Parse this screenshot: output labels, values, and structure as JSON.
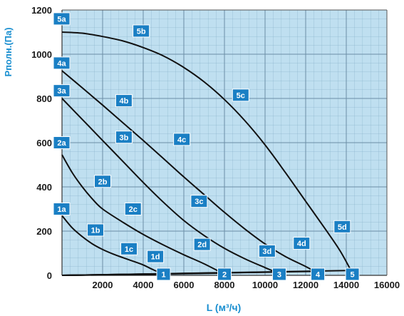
{
  "chart_data": {
    "type": "line",
    "xlabel": "L (м³/ч)",
    "ylabel": "Pполн.(Па)",
    "xlim": [
      0,
      16000
    ],
    "ylim": [
      0,
      1200
    ],
    "x_ticks": [
      "2000",
      "4000",
      "6000",
      "8000",
      "10000",
      "12000",
      "14000",
      "16000"
    ],
    "y_ticks": [
      "0",
      "200",
      "400",
      "600",
      "800",
      "1000",
      "1200"
    ],
    "grid": {
      "major_x": 2000,
      "major_y": 200,
      "minor_x": 400,
      "minor_y": 40
    },
    "colors": {
      "background": "#bfdff0",
      "grid": "#7ea9c3",
      "curve": "#111111",
      "badge": "#1a7fc4",
      "axis_title": "#1a8fd0"
    },
    "series": [
      {
        "points": [
          [
            0,
            270
          ],
          [
            500,
            215
          ],
          [
            1000,
            175
          ],
          [
            1500,
            142
          ],
          [
            2000,
            117
          ],
          [
            2500,
            97
          ],
          [
            3000,
            80
          ],
          [
            3500,
            64
          ],
          [
            4000,
            47
          ],
          [
            4500,
            25
          ],
          [
            5000,
            5
          ]
        ]
      },
      {
        "points": [
          [
            0,
            545
          ],
          [
            500,
            465
          ],
          [
            1000,
            400
          ],
          [
            1500,
            345
          ],
          [
            2000,
            300
          ],
          [
            3000,
            240
          ],
          [
            4000,
            185
          ],
          [
            5000,
            137
          ],
          [
            6000,
            93
          ],
          [
            7000,
            52
          ],
          [
            8000,
            5
          ]
        ]
      },
      {
        "points": [
          [
            0,
            800
          ],
          [
            1000,
            705
          ],
          [
            2000,
            610
          ],
          [
            3000,
            515
          ],
          [
            4000,
            420
          ],
          [
            5000,
            330
          ],
          [
            6000,
            248
          ],
          [
            7000,
            180
          ],
          [
            8000,
            122
          ],
          [
            9000,
            75
          ],
          [
            10000,
            35
          ],
          [
            10700,
            8
          ]
        ]
      },
      {
        "points": [
          [
            0,
            925
          ],
          [
            1000,
            848
          ],
          [
            2000,
            770
          ],
          [
            3000,
            690
          ],
          [
            4000,
            610
          ],
          [
            5000,
            528
          ],
          [
            6000,
            445
          ],
          [
            7000,
            365
          ],
          [
            8000,
            285
          ],
          [
            9000,
            210
          ],
          [
            10000,
            142
          ],
          [
            11000,
            85
          ],
          [
            12000,
            40
          ],
          [
            12600,
            10
          ]
        ]
      },
      {
        "points": [
          [
            0,
            1100
          ],
          [
            1000,
            1095
          ],
          [
            2000,
            1080
          ],
          [
            3000,
            1060
          ],
          [
            4000,
            1030
          ],
          [
            5000,
            992
          ],
          [
            6000,
            940
          ],
          [
            7000,
            875
          ],
          [
            8000,
            795
          ],
          [
            9000,
            700
          ],
          [
            10000,
            590
          ],
          [
            11000,
            465
          ],
          [
            12000,
            335
          ],
          [
            13000,
            205
          ],
          [
            13700,
            110
          ],
          [
            14300,
            10
          ]
        ]
      }
    ],
    "bottom_lines": [
      [
        [
          0,
          0
        ],
        [
          5000,
          5
        ]
      ],
      [
        [
          0,
          0
        ],
        [
          8000,
          10
        ]
      ],
      [
        [
          0,
          0
        ],
        [
          10700,
          15
        ]
      ],
      [
        [
          0,
          0
        ],
        [
          12600,
          18
        ]
      ],
      [
        [
          0,
          0
        ],
        [
          14300,
          22
        ]
      ]
    ],
    "labels": [
      {
        "text": "1a",
        "x": 0,
        "y": 300
      },
      {
        "text": "1b",
        "x": 1650,
        "y": 205
      },
      {
        "text": "1c",
        "x": 3300,
        "y": 120
      },
      {
        "text": "1d",
        "x": 4600,
        "y": 85
      },
      {
        "text": "1",
        "x": 5000,
        "y": 5
      },
      {
        "text": "2a",
        "x": 0,
        "y": 600
      },
      {
        "text": "2b",
        "x": 2000,
        "y": 425
      },
      {
        "text": "2c",
        "x": 3500,
        "y": 300
      },
      {
        "text": "2d",
        "x": 6900,
        "y": 140
      },
      {
        "text": "2",
        "x": 8000,
        "y": 5
      },
      {
        "text": "3a",
        "x": 0,
        "y": 835
      },
      {
        "text": "3b",
        "x": 3050,
        "y": 625
      },
      {
        "text": "3c",
        "x": 6750,
        "y": 335
      },
      {
        "text": "3d",
        "x": 10100,
        "y": 110
      },
      {
        "text": "3",
        "x": 10700,
        "y": 5
      },
      {
        "text": "4a",
        "x": 0,
        "y": 960
      },
      {
        "text": "4b",
        "x": 3050,
        "y": 790
      },
      {
        "text": "4c",
        "x": 5900,
        "y": 615
      },
      {
        "text": "4d",
        "x": 11800,
        "y": 145
      },
      {
        "text": "4",
        "x": 12600,
        "y": 5
      },
      {
        "text": "5a",
        "x": 0,
        "y": 1160
      },
      {
        "text": "5b",
        "x": 3900,
        "y": 1105
      },
      {
        "text": "5c",
        "x": 8800,
        "y": 815
      },
      {
        "text": "5d",
        "x": 13800,
        "y": 220
      },
      {
        "text": "5",
        "x": 14300,
        "y": 5
      }
    ]
  }
}
